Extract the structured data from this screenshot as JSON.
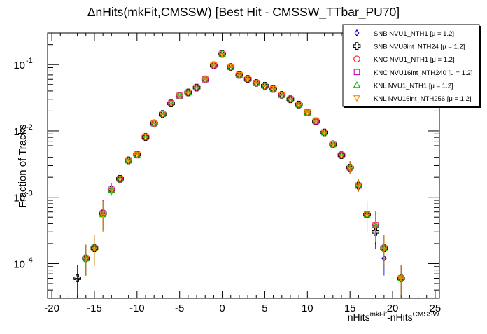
{
  "chart_data": {
    "type": "scatter",
    "title": "ΔnHits(mkFit,CMSSW) [Best Hit - CMSSW_TTbar_PU70]",
    "xlabel": {
      "base": "nHits",
      "sup1": "mkFit",
      "mid": "-nHits",
      "sup2": "CMSSW"
    },
    "ylabel": "Fraction of Tracks",
    "xlim": [
      -20.5,
      25.5
    ],
    "ylim": [
      3e-05,
      0.3
    ],
    "yscale": "log",
    "grid": false,
    "legend_position": "top-right",
    "x_ticks": [
      -20,
      -15,
      -10,
      -5,
      0,
      5,
      10,
      15,
      20,
      25
    ],
    "x_tick_labels": [
      "-20",
      "-15",
      "-10",
      "-5",
      "0",
      "5",
      "10",
      "15",
      "20",
      "25"
    ],
    "y_major_ticks": [
      0.0001,
      0.001,
      0.01,
      0.1
    ],
    "y_tick_labels": [
      {
        "base": "10",
        "exp": "-4"
      },
      {
        "base": "10",
        "exp": "-3"
      },
      {
        "base": "10",
        "exp": "-2"
      },
      {
        "base": "10",
        "exp": "-1"
      }
    ],
    "x": [
      -17,
      -16,
      -15,
      -14,
      -13,
      -12,
      -11,
      -10,
      -9,
      -8,
      -7,
      -6,
      -5,
      -4,
      -3,
      -2,
      -1,
      0,
      1,
      2,
      3,
      4,
      5,
      6,
      7,
      8,
      9,
      10,
      11,
      12,
      13,
      14,
      15,
      16,
      17,
      18,
      19,
      20,
      21
    ],
    "series": [
      {
        "name": "SNB NVU1_NTH1 [μ =  1.2]",
        "marker": "diamond",
        "color": "#0000cc",
        "values": [
          null,
          0.00012,
          0.00017,
          0.00057,
          0.0013,
          0.0019,
          0.0036,
          0.0044,
          0.0081,
          0.013,
          0.018,
          0.026,
          0.034,
          0.038,
          0.045,
          0.06,
          0.098,
          0.145,
          0.092,
          0.07,
          0.061,
          0.053,
          0.048,
          0.043,
          0.035,
          0.03,
          0.025,
          0.019,
          0.014,
          0.0095,
          0.0063,
          0.0043,
          0.0028,
          0.0015,
          0.00055,
          0.00035,
          0.00012,
          null,
          6e-05
        ]
      },
      {
        "name": "SNB NVU8int_NTH24 [μ =  1.2]",
        "marker": "open-cross",
        "color": "#000000",
        "values": [
          6e-05,
          0.00012,
          0.00017,
          0.00057,
          0.0013,
          0.0019,
          0.0036,
          0.0044,
          0.0081,
          0.013,
          0.018,
          0.026,
          0.034,
          0.038,
          0.045,
          0.06,
          0.098,
          0.145,
          0.092,
          0.07,
          0.061,
          0.053,
          0.048,
          0.043,
          0.035,
          0.03,
          0.025,
          0.019,
          0.014,
          0.0095,
          0.0063,
          0.0043,
          0.0028,
          0.0015,
          0.00055,
          0.0003,
          0.00017,
          null,
          6e-05
        ]
      },
      {
        "name": "KNC NVU1_NTH1 [μ =  1.2]",
        "marker": "circle",
        "color": "#ff0000",
        "values": [
          null,
          0.00012,
          0.00017,
          0.00057,
          0.0013,
          0.0019,
          0.0036,
          0.0044,
          0.0081,
          0.013,
          0.018,
          0.026,
          0.034,
          0.038,
          0.045,
          0.06,
          0.098,
          0.145,
          0.092,
          0.07,
          0.061,
          0.053,
          0.048,
          0.043,
          0.035,
          0.03,
          0.025,
          0.019,
          0.014,
          0.0095,
          0.0063,
          0.0043,
          0.0028,
          0.0015,
          0.00055,
          0.00038,
          0.00017,
          null,
          6e-05
        ]
      },
      {
        "name": "KNC NVU16int_NTH240 [μ =  1.2]",
        "marker": "square",
        "color": "#cc00cc",
        "values": [
          null,
          0.00012,
          0.00017,
          0.00057,
          0.0013,
          0.0019,
          0.0036,
          0.0044,
          0.0081,
          0.013,
          0.018,
          0.026,
          0.034,
          0.038,
          0.045,
          0.06,
          0.098,
          0.145,
          0.092,
          0.07,
          0.061,
          0.053,
          0.048,
          0.043,
          0.035,
          0.03,
          0.025,
          0.019,
          0.014,
          0.0095,
          0.0063,
          0.0043,
          0.0028,
          0.0015,
          0.00055,
          0.00038,
          0.00017,
          null,
          6e-05
        ]
      },
      {
        "name": "KNL NVU1_NTH1 [μ =  1.2]",
        "marker": "triangle",
        "color": "#00bb00",
        "values": [
          null,
          0.00012,
          0.00017,
          0.00055,
          0.0013,
          0.0019,
          0.0036,
          0.0044,
          0.0081,
          0.013,
          0.018,
          0.026,
          0.034,
          0.038,
          0.045,
          0.06,
          0.098,
          0.145,
          0.092,
          0.07,
          0.061,
          0.053,
          0.048,
          0.043,
          0.035,
          0.03,
          0.025,
          0.019,
          0.014,
          0.0095,
          0.0063,
          0.0043,
          0.0028,
          0.0015,
          0.00055,
          0.00038,
          0.00017,
          null,
          6e-05
        ]
      },
      {
        "name": "KNL NVU16int_NTH256 [μ =  1.2]",
        "marker": "inverted-triangle",
        "color": "#ff8800",
        "values": [
          null,
          0.00012,
          0.00017,
          0.00055,
          0.0013,
          0.0019,
          0.0036,
          0.0044,
          0.0081,
          0.013,
          0.018,
          0.026,
          0.034,
          0.038,
          0.045,
          0.06,
          0.098,
          0.145,
          0.092,
          0.07,
          0.061,
          0.053,
          0.048,
          0.043,
          0.035,
          0.03,
          0.025,
          0.019,
          0.014,
          0.0095,
          0.0063,
          0.0043,
          0.0028,
          0.0015,
          0.00055,
          0.00038,
          0.00017,
          null,
          6e-05
        ]
      }
    ]
  }
}
